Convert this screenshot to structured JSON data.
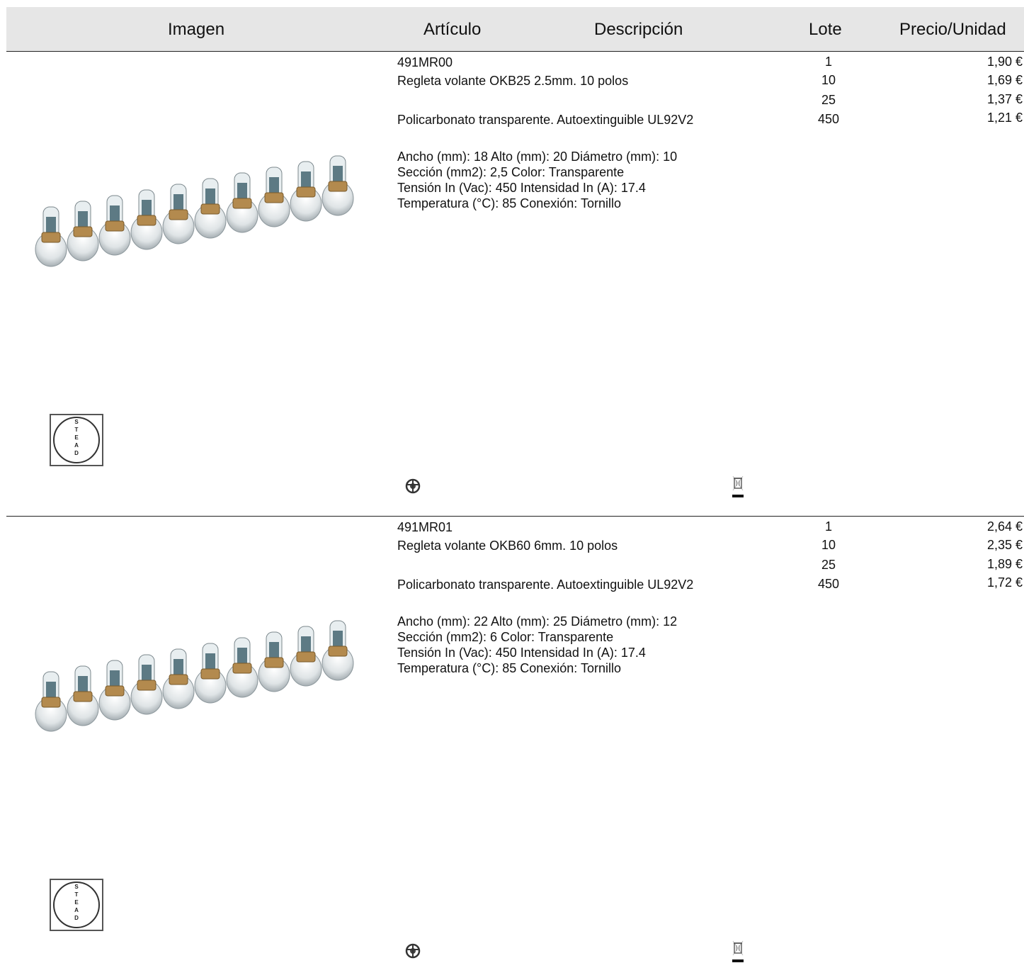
{
  "header": {
    "imagen": "Imagen",
    "articulo": "Artículo",
    "descripcion": "Descripción",
    "lote": "Lote",
    "precio": "Precio/Unidad"
  },
  "products": [
    {
      "code": "491MR00",
      "name": "Regleta volante OKB25 2.5mm. 10 polos",
      "material": "Policarbonato transparente. Autoextinguible UL92V2",
      "specs": [
        "Ancho (mm): 18 Alto (mm): 20 Diámetro (mm): 10",
        "Sección (mm2): 2,5 Color: Transparente",
        "Tensión In (Vac): 450 Intensidad In (A): 17.4",
        "Temperatura (°C): 85 Conexión: Tornillo"
      ],
      "lots": [
        "1",
        "10",
        "25",
        "450"
      ],
      "prices": [
        "1,90 €",
        "1,69 €",
        "1,37 €",
        "1,21 €"
      ],
      "logo_text": "STEAD"
    },
    {
      "code": "491MR01",
      "name": "Regleta volante OKB60 6mm. 10 polos",
      "material": "Policarbonato transparente. Autoextinguible UL92V2",
      "specs": [
        "Ancho (mm): 22 Alto (mm): 25 Diámetro (mm): 12",
        "Sección (mm2): 6 Color: Transparente",
        "Tensión In (Vac): 450 Intensidad In (A): 17.4",
        "Temperatura (°C): 85 Conexión: Tornillo"
      ],
      "lots": [
        "1",
        "10",
        "25",
        "450"
      ],
      "prices": [
        "2,64 €",
        "2,35 €",
        "1,89 €",
        "1,72 €"
      ],
      "logo_text": "STEAD"
    }
  ],
  "icons": {
    "product_image": "terminal-strip-image",
    "logo": "stead-logo",
    "icon_a": "safety-mark-icon",
    "icon_b": "weee-bin-icon"
  }
}
